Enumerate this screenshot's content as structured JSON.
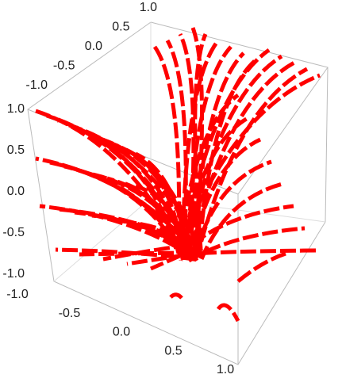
{
  "chart_data": {
    "type": "stream3d",
    "color": "#ff0000",
    "xlim": [
      -1,
      1
    ],
    "xticks": [
      {
        "value": -1,
        "label": "-1.0"
      },
      -0.5,
      {
        "value": 0,
        "label": "0.0"
      },
      0.5,
      {
        "value": 1,
        "label": "1.0"
      }
    ],
    "ylim": [
      -1,
      1
    ],
    "yticks": [
      {
        "value": -1,
        "label": "-1.0"
      },
      -0.5,
      {
        "value": 0,
        "label": "0.0"
      },
      0.5,
      {
        "value": 1,
        "label": "1.0"
      }
    ],
    "zlim": [
      -1,
      1
    ],
    "zticks": [
      {
        "value": -1,
        "label": "-1.0"
      },
      -0.5,
      {
        "value": 0,
        "label": "0.0"
      },
      0.5,
      {
        "value": 1,
        "label": "1.0"
      }
    ]
  }
}
